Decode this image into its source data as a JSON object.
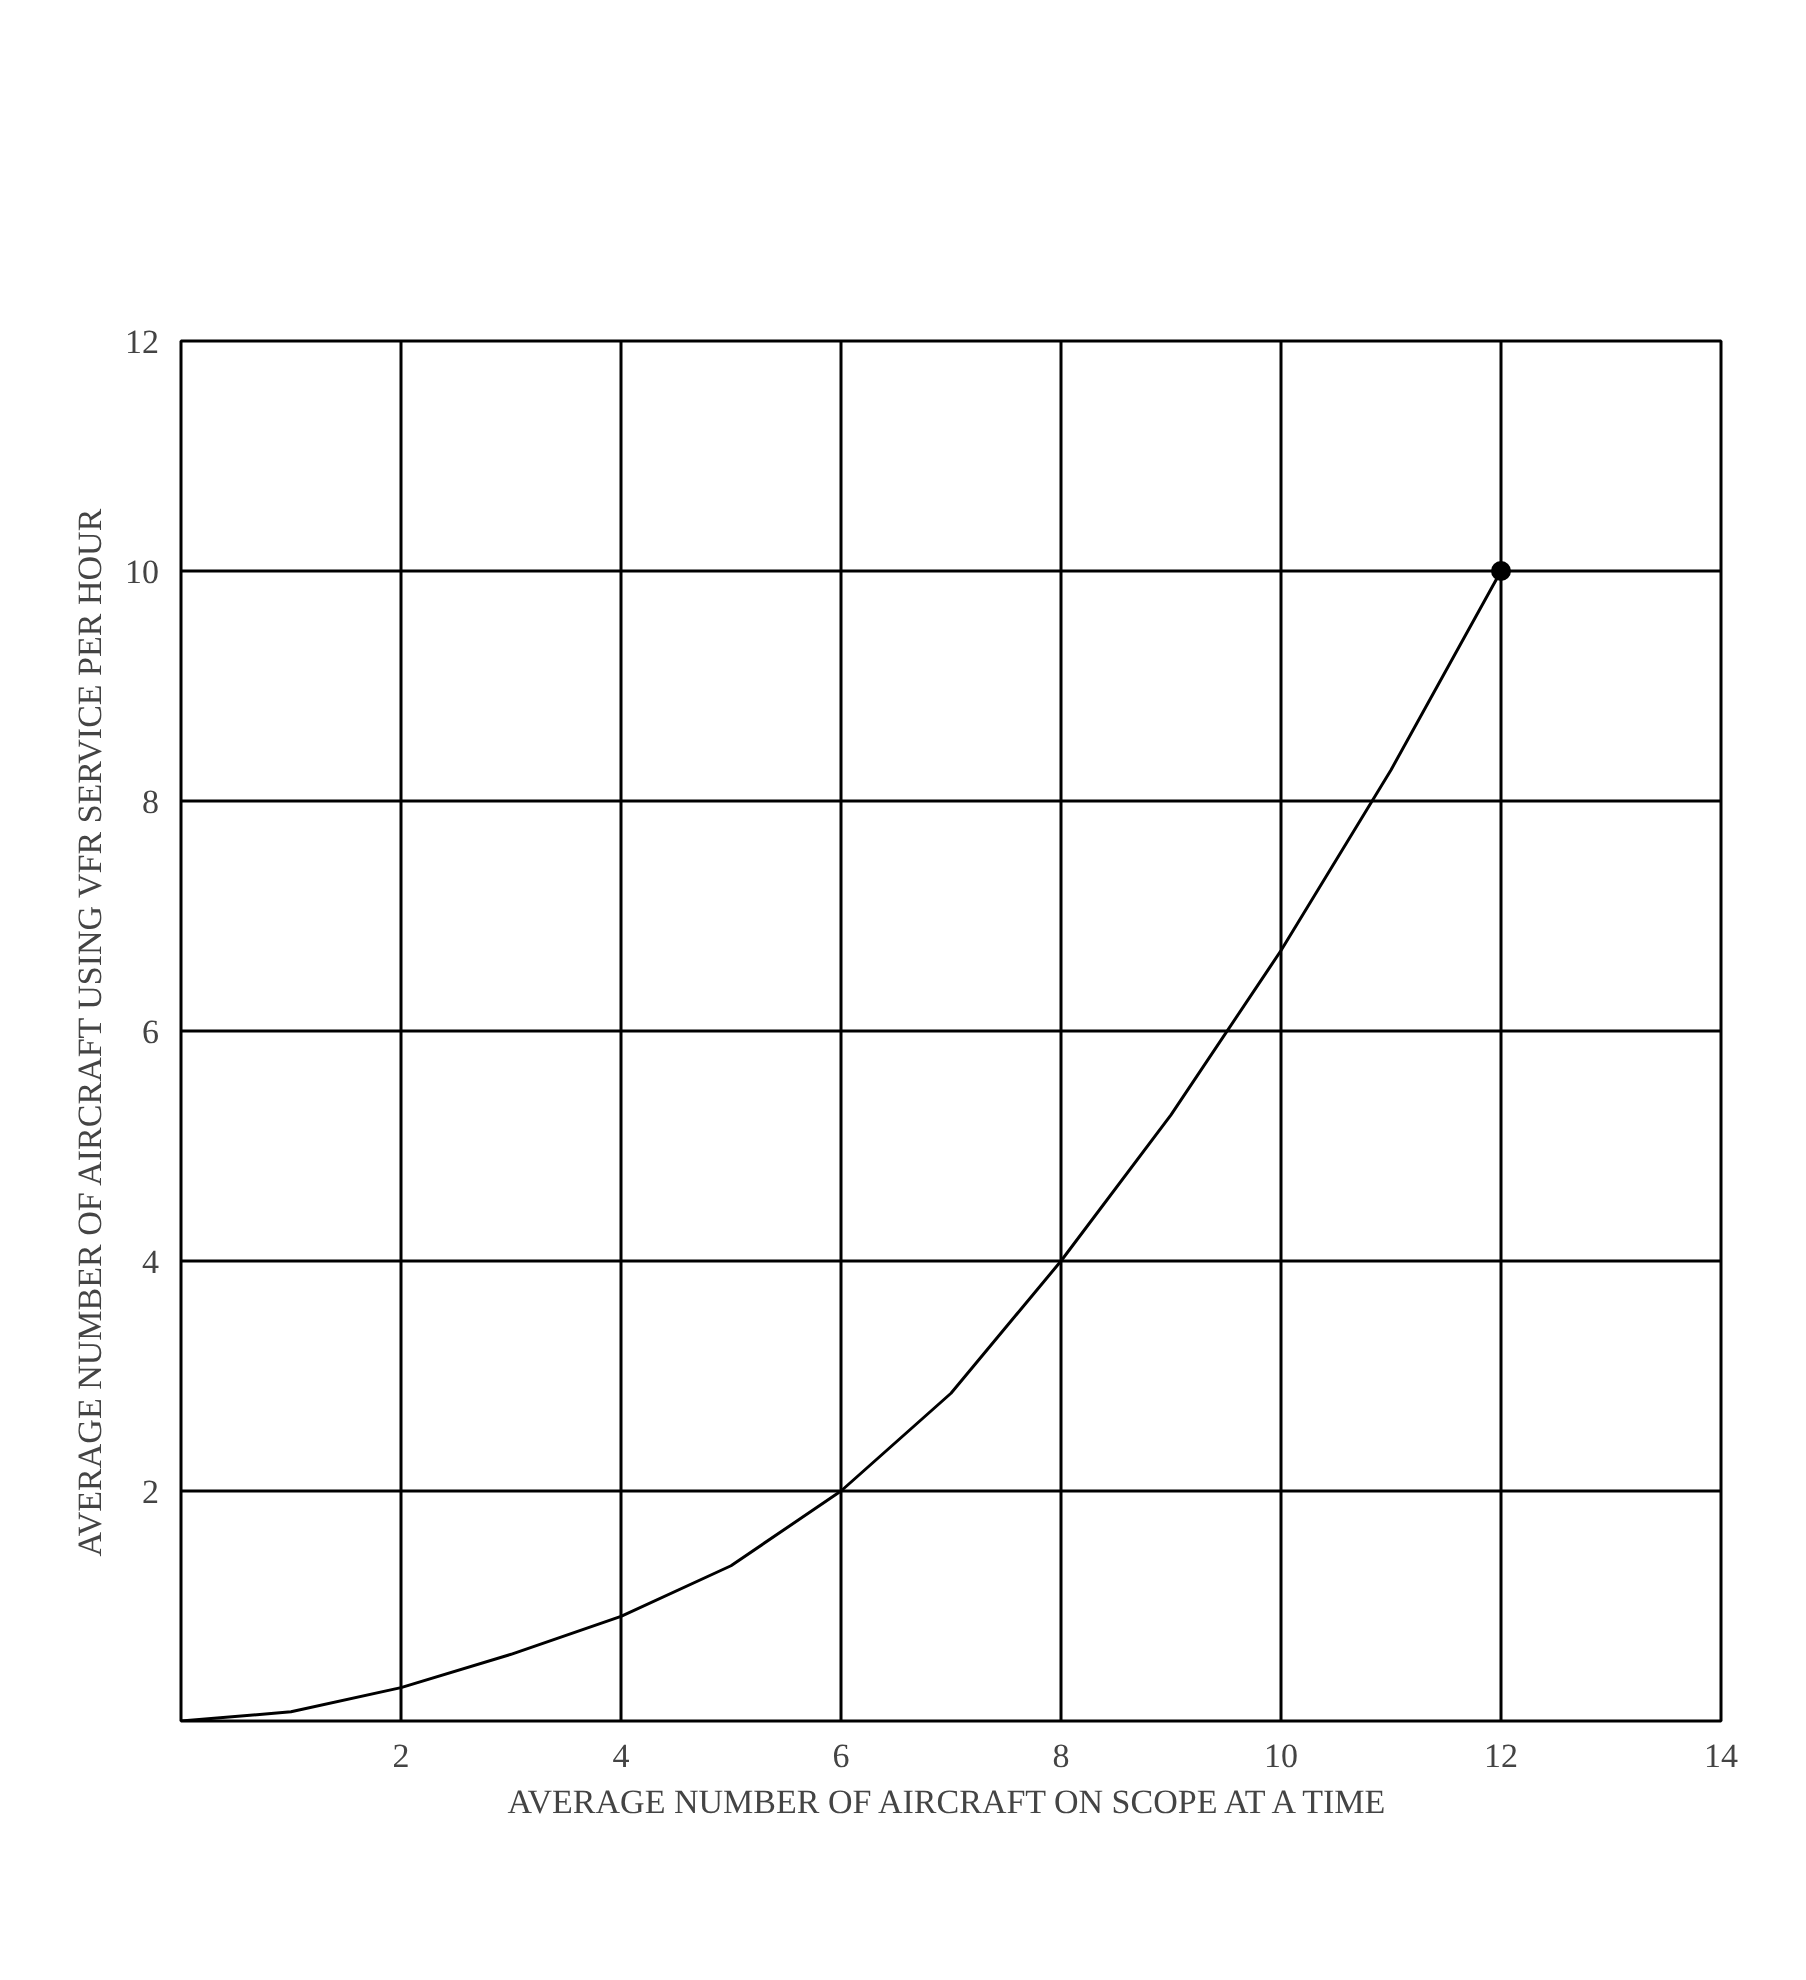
{
  "chart_data": {
    "type": "line",
    "xlabel": "AVERAGE NUMBER OF AIRCRAFT ON SCOPE AT A TIME",
    "ylabel": "AVERAGE NUMBER OF AIRCRAFT USING VFR SERVICE PER HOUR",
    "xlim": [
      0,
      14
    ],
    "ylim": [
      0,
      12
    ],
    "xticks": [
      {
        "value": 0,
        "label": null
      },
      2,
      4,
      6,
      8,
      10,
      12,
      14
    ],
    "yticks": [
      {
        "value": 0,
        "label": null
      },
      2,
      4,
      6,
      8,
      10,
      12
    ],
    "grid": true,
    "series": [
      {
        "color": "#000000",
        "x": [
          0,
          1,
          2,
          3,
          4,
          5,
          6,
          7,
          8,
          9,
          10,
          11,
          12
        ],
        "values": [
          0,
          0.08,
          0.29,
          0.58,
          0.91,
          1.35,
          2,
          2.85,
          4,
          5.27,
          6.7,
          8.27,
          10
        ]
      },
      {
        "type": "scatter",
        "color": "#000000",
        "marker": "circle",
        "x": [
          12
        ],
        "values": [
          10
        ]
      }
    ]
  }
}
